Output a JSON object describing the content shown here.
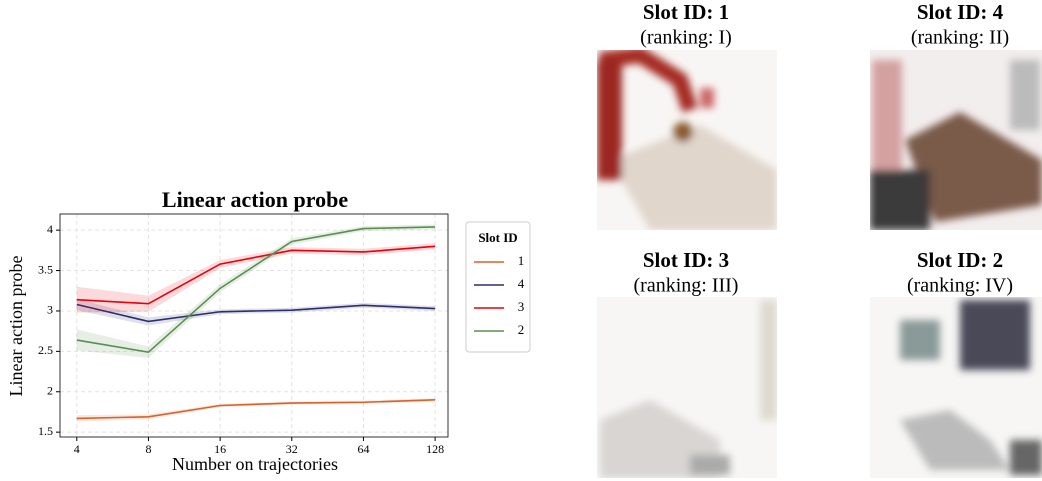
{
  "chart_data": {
    "type": "line",
    "title": "Linear action probe",
    "x_label": "Number on trajectories",
    "y_label": "Linear action probe",
    "x": [
      4,
      8,
      16,
      32,
      64,
      128
    ],
    "x_scale": "log2",
    "xlim": [
      3.4,
      145
    ],
    "xticks": [
      4,
      8,
      16,
      32,
      64,
      128
    ],
    "ylim": [
      1.44,
      4.2
    ],
    "yticks": [
      1.5,
      2.0,
      2.5,
      3.0,
      3.5,
      4.0
    ],
    "grid": true,
    "legend_title": "Slot ID",
    "legend_position": "outside-right",
    "series": [
      {
        "name": "1",
        "color": "#d9622b",
        "values": [
          1.67,
          1.69,
          1.83,
          1.86,
          1.87,
          1.9
        ],
        "errors": [
          0.04,
          0.03,
          0.02,
          0.02,
          0.02,
          0.02
        ]
      },
      {
        "name": "4",
        "color": "#2b2f6e",
        "values": [
          3.08,
          2.87,
          2.99,
          3.01,
          3.07,
          3.03
        ],
        "errors": [
          0.07,
          0.05,
          0.03,
          0.03,
          0.03,
          0.03
        ]
      },
      {
        "name": "3",
        "color": "#e8000b",
        "values": [
          3.14,
          3.09,
          3.58,
          3.75,
          3.73,
          3.8
        ],
        "errors": [
          0.16,
          0.1,
          0.05,
          0.04,
          0.04,
          0.04
        ]
      },
      {
        "name": "2",
        "color": "#5a8f4e",
        "values": [
          2.64,
          2.49,
          3.28,
          3.86,
          4.02,
          4.04
        ],
        "errors": [
          0.13,
          0.07,
          0.05,
          0.04,
          0.03,
          0.03
        ]
      }
    ]
  },
  "slots": [
    {
      "title": "Slot ID: 1",
      "ranking": "(ranking: I)"
    },
    {
      "title": "Slot ID: 4",
      "ranking": "(ranking: II)"
    },
    {
      "title": "Slot ID: 3",
      "ranking": "(ranking: III)"
    },
    {
      "title": "Slot ID: 2",
      "ranking": "(ranking: IV)"
    }
  ]
}
